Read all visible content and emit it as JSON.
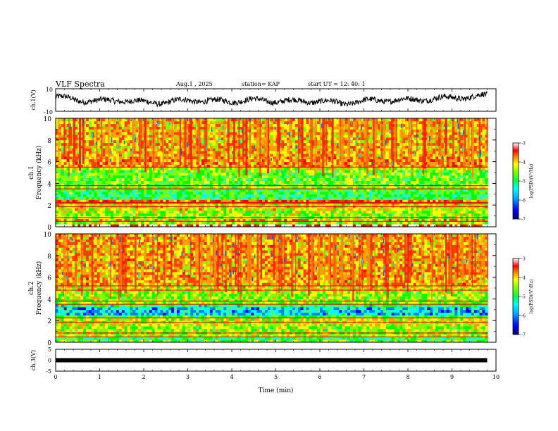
{
  "header": {
    "title": "VLF Spectra",
    "date": "Aug.1 , 2025",
    "station": "station= KAP",
    "start": "start UT = 12: 40: 1"
  },
  "colors": {
    "scale": [
      "#00007f",
      "#0000ff",
      "#0080ff",
      "#00ffff",
      "#40ff80",
      "#00ff00",
      "#80ff00",
      "#ffff00",
      "#ffa000",
      "#ff4000",
      "#ff0000",
      "#ffffff"
    ]
  },
  "chart_data": [
    {
      "type": "line",
      "name": "ch1-waveform",
      "ylabel": "ch.1(V)",
      "ylim": [
        -10,
        10
      ],
      "yticks": [
        "10",
        "-10"
      ],
      "x": [
        0,
        0.5,
        1.0,
        1.5,
        2.0,
        2.5,
        3.0,
        3.5,
        4.0,
        4.5,
        5.0,
        5.5,
        6.0,
        6.5,
        7.0,
        7.5,
        8.0,
        8.5,
        9.0,
        9.5,
        9.8
      ],
      "values": [
        3,
        0,
        -1,
        0,
        -2,
        -2,
        0,
        -1,
        -1,
        0,
        -1,
        -1,
        -1,
        -3,
        -1,
        0,
        0,
        1,
        2,
        3,
        4
      ]
    },
    {
      "type": "heatmap",
      "name": "ch1-spectrogram",
      "ylabel": "ch.1 Frequency (kHz)",
      "ylim": [
        0,
        10
      ],
      "yticks": [
        "0",
        "2",
        "4",
        "6",
        "8",
        "10"
      ],
      "colorbar": {
        "label": "log(PSD)(V²/Hz)",
        "range": [
          -7,
          -3
        ],
        "ticks": [
          "-3",
          "-4",
          "-5",
          "-6",
          "-7"
        ]
      },
      "horizontal_lines_khz": [
        0.5,
        0.85,
        1.85,
        2.15,
        2.25,
        3.5,
        3.8,
        5.5
      ]
    },
    {
      "type": "heatmap",
      "name": "ch2-spectrogram",
      "ylabel": "ch.2 Frequency (kHz)",
      "ylim": [
        0,
        10
      ],
      "yticks": [
        "0",
        "2",
        "4",
        "6",
        "8",
        "10"
      ],
      "colorbar": {
        "label": "log(PSD)(V²/Hz)",
        "range": [
          -7,
          -3
        ],
        "ticks": [
          "-3",
          "-4",
          "-5",
          "-6",
          "-7"
        ]
      },
      "horizontal_lines_khz": [
        0.5,
        0.85,
        1.85,
        2.25,
        3.5,
        3.8,
        4.8,
        5.2
      ]
    },
    {
      "type": "line",
      "name": "ch3-waveform",
      "ylabel": "ch.3(V)",
      "ylim": [
        -5,
        5
      ],
      "yticks": [
        "5",
        "0",
        "-5"
      ],
      "x": [
        0,
        9.8
      ],
      "values": [
        0,
        0
      ]
    }
  ],
  "xaxis": {
    "label": "Time (min)",
    "range": [
      0,
      10
    ],
    "ticks": [
      "0",
      "1",
      "2",
      "3",
      "4",
      "5",
      "6",
      "7",
      "8",
      "9",
      "10"
    ]
  }
}
